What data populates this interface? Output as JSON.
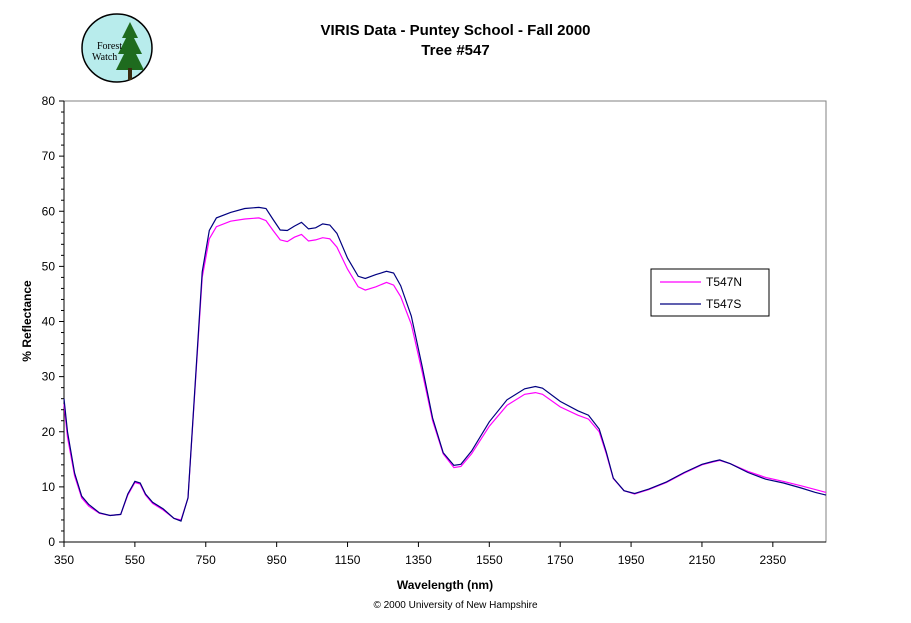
{
  "logo": {
    "text_line1": "Forest",
    "text_line2": "Watch"
  },
  "chart_data": {
    "type": "line",
    "title": "VIRIS Data - Puntey School - Fall 2000",
    "subtitle": "Tree #547",
    "xlabel": "Wavelength (nm)",
    "ylabel": "% Reflectance",
    "xlim": [
      350,
      2500
    ],
    "ylim": [
      0,
      80
    ],
    "x_ticks": [
      350,
      550,
      750,
      950,
      1150,
      1350,
      1550,
      1750,
      1950,
      2150,
      2350
    ],
    "y_ticks": [
      0,
      10,
      20,
      30,
      40,
      50,
      60,
      70,
      80
    ],
    "grid": false,
    "legend_position": "right",
    "series": [
      {
        "name": "T547N",
        "color": "#ff00ff",
        "points": [
          [
            350,
            25
          ],
          [
            360,
            19
          ],
          [
            380,
            12
          ],
          [
            400,
            8
          ],
          [
            420,
            6.5
          ],
          [
            450,
            5.2
          ],
          [
            480,
            4.8
          ],
          [
            510,
            5
          ],
          [
            530,
            8.5
          ],
          [
            550,
            10.8
          ],
          [
            565,
            10.5
          ],
          [
            580,
            8.5
          ],
          [
            600,
            7
          ],
          [
            630,
            5.8
          ],
          [
            660,
            4.3
          ],
          [
            680,
            4
          ],
          [
            700,
            8
          ],
          [
            720,
            28
          ],
          [
            740,
            48
          ],
          [
            760,
            55
          ],
          [
            780,
            57.2
          ],
          [
            820,
            58.2
          ],
          [
            860,
            58.6
          ],
          [
            900,
            58.8
          ],
          [
            920,
            58.3
          ],
          [
            940,
            56.5
          ],
          [
            960,
            54.8
          ],
          [
            980,
            54.5
          ],
          [
            1000,
            55.3
          ],
          [
            1020,
            55.8
          ],
          [
            1040,
            54.6
          ],
          [
            1060,
            54.8
          ],
          [
            1080,
            55.2
          ],
          [
            1100,
            55
          ],
          [
            1120,
            53.5
          ],
          [
            1150,
            49.5
          ],
          [
            1180,
            46.3
          ],
          [
            1200,
            45.7
          ],
          [
            1230,
            46.3
          ],
          [
            1260,
            47.1
          ],
          [
            1280,
            46.6
          ],
          [
            1300,
            44.5
          ],
          [
            1330,
            39.5
          ],
          [
            1360,
            31
          ],
          [
            1390,
            22
          ],
          [
            1420,
            16
          ],
          [
            1450,
            13.5
          ],
          [
            1470,
            13.7
          ],
          [
            1500,
            16
          ],
          [
            1550,
            21
          ],
          [
            1600,
            24.8
          ],
          [
            1650,
            26.8
          ],
          [
            1680,
            27.1
          ],
          [
            1700,
            26.8
          ],
          [
            1750,
            24.5
          ],
          [
            1800,
            23
          ],
          [
            1830,
            22.3
          ],
          [
            1860,
            20
          ],
          [
            1880,
            16
          ],
          [
            1900,
            11.5
          ],
          [
            1930,
            9.3
          ],
          [
            1960,
            8.7
          ],
          [
            2000,
            9.5
          ],
          [
            2050,
            10.8
          ],
          [
            2100,
            12.5
          ],
          [
            2150,
            14
          ],
          [
            2180,
            14.5
          ],
          [
            2200,
            14.8
          ],
          [
            2230,
            14.2
          ],
          [
            2280,
            12.8
          ],
          [
            2330,
            11.7
          ],
          [
            2380,
            11
          ],
          [
            2430,
            10.2
          ],
          [
            2470,
            9.5
          ],
          [
            2500,
            9
          ]
        ]
      },
      {
        "name": "T547S",
        "color": "#000080",
        "points": [
          [
            350,
            26
          ],
          [
            360,
            20
          ],
          [
            380,
            12.5
          ],
          [
            400,
            8.3
          ],
          [
            420,
            6.8
          ],
          [
            450,
            5.3
          ],
          [
            480,
            4.8
          ],
          [
            510,
            5
          ],
          [
            530,
            8.7
          ],
          [
            550,
            11
          ],
          [
            565,
            10.7
          ],
          [
            580,
            8.7
          ],
          [
            600,
            7.2
          ],
          [
            630,
            6
          ],
          [
            660,
            4.3
          ],
          [
            680,
            3.8
          ],
          [
            700,
            8
          ],
          [
            720,
            28.5
          ],
          [
            740,
            49
          ],
          [
            760,
            56.5
          ],
          [
            780,
            58.8
          ],
          [
            820,
            59.8
          ],
          [
            860,
            60.5
          ],
          [
            900,
            60.7
          ],
          [
            920,
            60.5
          ],
          [
            940,
            58.5
          ],
          [
            960,
            56.6
          ],
          [
            980,
            56.5
          ],
          [
            1000,
            57.3
          ],
          [
            1020,
            58
          ],
          [
            1040,
            56.8
          ],
          [
            1060,
            57
          ],
          [
            1080,
            57.7
          ],
          [
            1100,
            57.5
          ],
          [
            1120,
            56
          ],
          [
            1150,
            51.5
          ],
          [
            1180,
            48.2
          ],
          [
            1200,
            47.8
          ],
          [
            1230,
            48.5
          ],
          [
            1260,
            49.1
          ],
          [
            1280,
            48.8
          ],
          [
            1300,
            46.5
          ],
          [
            1330,
            41
          ],
          [
            1360,
            32
          ],
          [
            1390,
            22.5
          ],
          [
            1420,
            16.2
          ],
          [
            1450,
            13.9
          ],
          [
            1470,
            14.1
          ],
          [
            1500,
            16.5
          ],
          [
            1550,
            21.8
          ],
          [
            1600,
            25.8
          ],
          [
            1650,
            27.8
          ],
          [
            1680,
            28.2
          ],
          [
            1700,
            27.9
          ],
          [
            1750,
            25.5
          ],
          [
            1800,
            23.8
          ],
          [
            1830,
            23
          ],
          [
            1860,
            20.5
          ],
          [
            1880,
            16.3
          ],
          [
            1900,
            11.6
          ],
          [
            1930,
            9.3
          ],
          [
            1960,
            8.8
          ],
          [
            2000,
            9.6
          ],
          [
            2050,
            10.9
          ],
          [
            2100,
            12.6
          ],
          [
            2150,
            14.1
          ],
          [
            2180,
            14.6
          ],
          [
            2200,
            14.9
          ],
          [
            2230,
            14.2
          ],
          [
            2280,
            12.6
          ],
          [
            2330,
            11.4
          ],
          [
            2380,
            10.7
          ],
          [
            2430,
            9.8
          ],
          [
            2470,
            9
          ],
          [
            2500,
            8.5
          ]
        ]
      }
    ]
  },
  "footer": "© 2000 University of New Hampshire"
}
